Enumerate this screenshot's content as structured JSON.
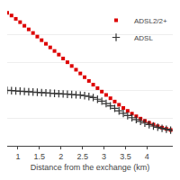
{
  "chart_data": {
    "type": "scatter",
    "xlabel": "Distance from the exchange (km)",
    "xlim": [
      0.75,
      4.6
    ],
    "xticks": [
      1,
      1.5,
      2,
      2.5,
      3,
      3.5,
      4
    ],
    "ylim": [
      0.0,
      1.0
    ],
    "yticks": [
      0.2,
      0.4,
      0.6,
      0.8,
      1.0
    ],
    "grid": "y",
    "tick_labels": "x",
    "legend": "upper right",
    "series": [
      {
        "name": "ADSL2/2+",
        "color": "#dd0000",
        "marker": "square",
        "x": [
          0.75,
          0.85,
          0.95,
          1.05,
          1.15,
          1.25,
          1.35,
          1.45,
          1.55,
          1.65,
          1.75,
          1.85,
          1.95,
          2.05,
          2.15,
          2.25,
          2.35,
          2.45,
          2.55,
          2.65,
          2.75,
          2.85,
          2.95,
          3.05,
          3.15,
          3.25,
          3.35,
          3.45,
          3.55,
          3.65,
          3.75,
          3.85,
          3.95,
          4.05,
          4.15,
          4.25,
          4.35,
          4.45,
          4.55
        ],
        "values": [
          0.96,
          0.94,
          0.916,
          0.892,
          0.866,
          0.84,
          0.814,
          0.788,
          0.762,
          0.736,
          0.71,
          0.684,
          0.658,
          0.63,
          0.603,
          0.576,
          0.549,
          0.522,
          0.495,
          0.468,
          0.441,
          0.416,
          0.391,
          0.367,
          0.343,
          0.319,
          0.296,
          0.273,
          0.252,
          0.232,
          0.213,
          0.196,
          0.18,
          0.166,
          0.153,
          0.141,
          0.131,
          0.122,
          0.114
        ]
      },
      {
        "name": "ADSL",
        "color": "#333333",
        "marker": "plus",
        "x": [
          0.75,
          0.85,
          0.95,
          1.05,
          1.15,
          1.25,
          1.35,
          1.45,
          1.55,
          1.65,
          1.75,
          1.85,
          1.95,
          2.05,
          2.15,
          2.25,
          2.35,
          2.45,
          2.55,
          2.65,
          2.75,
          2.85,
          2.95,
          3.05,
          3.15,
          3.25,
          3.35,
          3.45,
          3.55,
          3.65,
          3.75,
          3.85,
          3.95,
          4.05,
          4.15,
          4.25,
          4.35,
          4.45,
          4.55
        ],
        "values": [
          0.4,
          0.398,
          0.396,
          0.394,
          0.392,
          0.39,
          0.388,
          0.386,
          0.384,
          0.382,
          0.38,
          0.378,
          0.376,
          0.374,
          0.372,
          0.37,
          0.368,
          0.366,
          0.362,
          0.356,
          0.348,
          0.336,
          0.322,
          0.305,
          0.288,
          0.27,
          0.252,
          0.234,
          0.218,
          0.203,
          0.189,
          0.176,
          0.164,
          0.153,
          0.143,
          0.134,
          0.126,
          0.119,
          0.113
        ]
      }
    ]
  }
}
